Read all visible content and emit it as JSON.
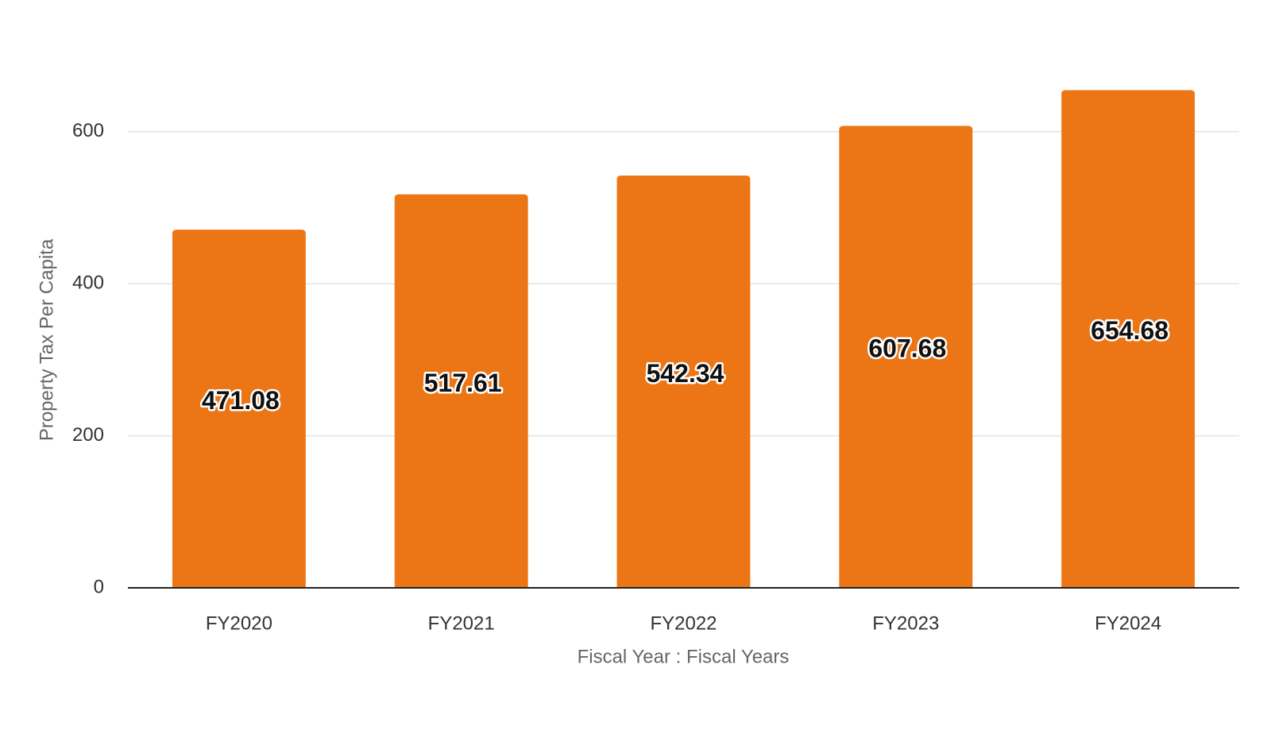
{
  "chart_data": {
    "type": "bar",
    "x_label": "Fiscal Year : Fiscal Years",
    "y_label": "Property Tax Per Capita",
    "categories": [
      "FY2020",
      "FY2021",
      "FY2022",
      "FY2023",
      "FY2024"
    ],
    "values": [
      471.08,
      517.61,
      542.34,
      607.68,
      654.68
    ],
    "color": "#ec7615",
    "ylim": [
      0,
      700
    ],
    "yticks": [
      0,
      200,
      400,
      600
    ],
    "grid": true
  }
}
